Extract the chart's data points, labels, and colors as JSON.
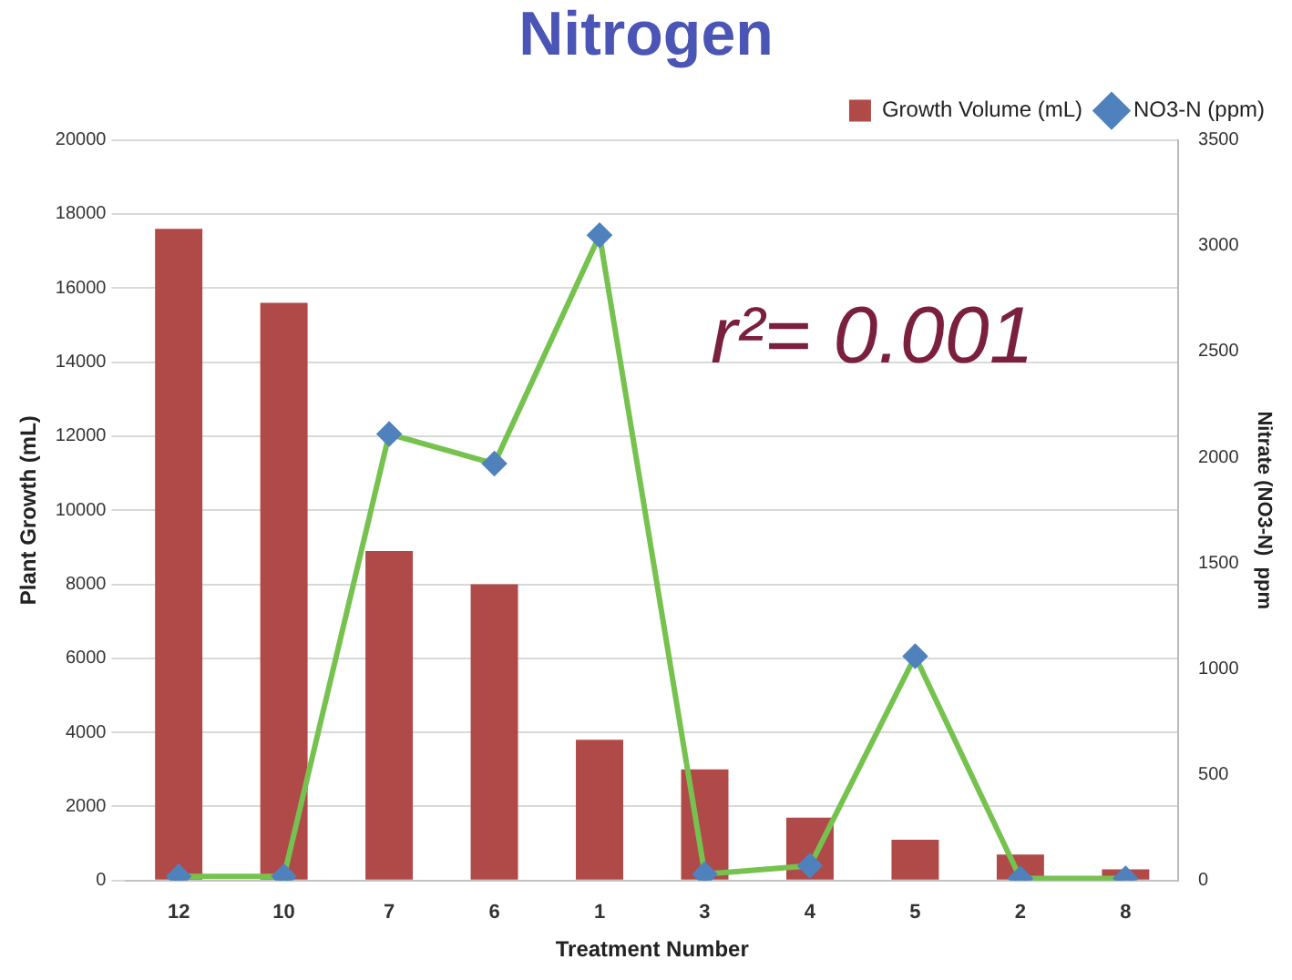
{
  "chart_data": {
    "type": "bar",
    "title": "Nitrogen",
    "xlabel": "Treatment Number",
    "ylabel": "Plant Growth (mL)",
    "y2label": "Nitrate (NO3-N)  ppm",
    "categories": [
      "12",
      "10",
      "7",
      "6",
      "1",
      "3",
      "4",
      "5",
      "2",
      "8"
    ],
    "series": [
      {
        "name": "Growth Volume (mL)",
        "color": "#b04a48",
        "values": [
          17600,
          15600,
          8900,
          8000,
          3800,
          3000,
          1700,
          1100,
          700,
          300
        ]
      },
      {
        "name": "NO3-N (ppm)",
        "type": "line",
        "axis": "y2",
        "color": "#76c24f",
        "values": [
          20,
          20,
          2110,
          1970,
          3050,
          30,
          70,
          1060,
          10,
          10
        ]
      }
    ],
    "ylim": [
      0,
      20000
    ],
    "yticks": [
      0,
      2000,
      4000,
      6000,
      8000,
      10000,
      12000,
      14000,
      16000,
      18000,
      20000
    ],
    "y2lim": [
      0,
      3500
    ],
    "y2ticks": [
      0,
      500,
      1000,
      1500,
      2000,
      2500,
      3000,
      3500
    ],
    "grid": "y",
    "legend": "top right",
    "marker": "diamond",
    "annotations": [
      "r²= 0.001"
    ]
  }
}
